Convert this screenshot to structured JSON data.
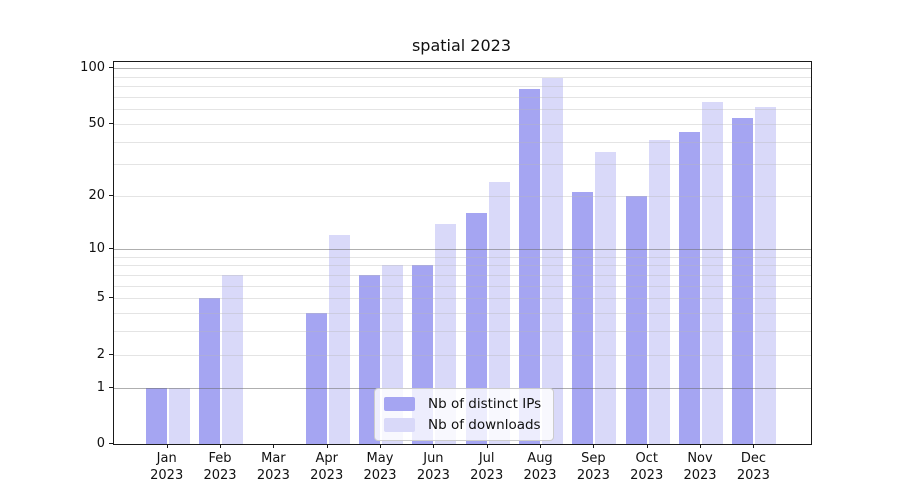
{
  "title": "spatial 2023",
  "chart_data": {
    "type": "bar",
    "title": "spatial 2023",
    "subtitle": "",
    "xlabel": "",
    "ylabel": "",
    "year": "2023",
    "categories": [
      "Jan",
      "Feb",
      "Mar",
      "Apr",
      "May",
      "Jun",
      "Jul",
      "Aug",
      "Sep",
      "Oct",
      "Nov",
      "Dec"
    ],
    "x_tick_labels": [
      "Jan 2023",
      "Feb 2023",
      "Mar 2023",
      "Apr 2023",
      "May 2023",
      "Jun 2023",
      "Jul 2023",
      "Aug 2023",
      "Sep 2023",
      "Oct 2023",
      "Nov 2023",
      "Dec 2023"
    ],
    "series": [
      {
        "name": "Nb of distinct IPs",
        "color": "#a5a5f2",
        "values": [
          1,
          5,
          0,
          4,
          7,
          8,
          16,
          77,
          21,
          20,
          45,
          54
        ]
      },
      {
        "name": "Nb of downloads",
        "color": "#d9d9f9",
        "values": [
          1,
          7,
          0,
          12,
          8,
          14,
          24,
          89,
          35,
          41,
          66,
          62
        ]
      }
    ],
    "y_scale": "log10(1+x)",
    "y_ticks": [
      {
        "value": 0,
        "label": "0"
      },
      {
        "value": 1,
        "label": "1"
      },
      {
        "value": 2,
        "label": "2"
      },
      {
        "value": 5,
        "label": "5"
      },
      {
        "value": 10,
        "label": "10"
      },
      {
        "value": 20,
        "label": "20"
      },
      {
        "value": 50,
        "label": "50"
      },
      {
        "value": 100,
        "label": "100"
      }
    ],
    "y_major_gridlines": [
      1,
      10,
      100
    ],
    "y_minor_gridlines": [
      2,
      3,
      4,
      5,
      6,
      7,
      8,
      9,
      20,
      30,
      40,
      50,
      60,
      70,
      80,
      90
    ],
    "ylim": [
      0,
      109
    ],
    "grid": true,
    "legend_position": "lower center"
  },
  "colors": {
    "ips_bar": "#a5a5f2",
    "downloads_bar": "#d9d9f9",
    "spine": "#1a1a1a",
    "major_grid": "#b3b3b3",
    "minor_grid": "#e7e7e7",
    "background": "#ffffff"
  }
}
